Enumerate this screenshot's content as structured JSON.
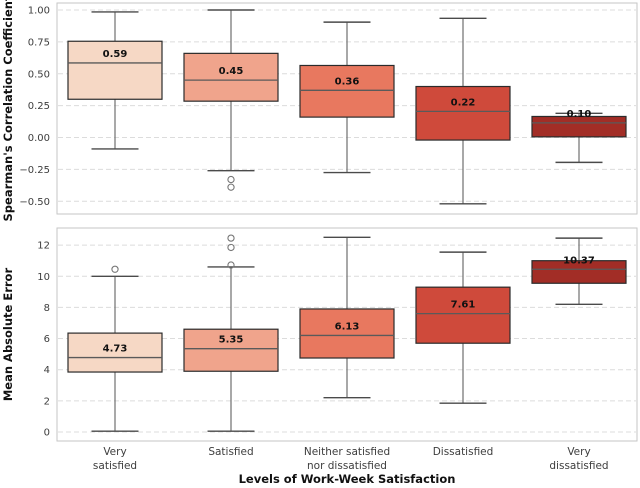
{
  "figure": {
    "xlabel": "Levels of Work-Week Satisfaction",
    "background": "#ffffff",
    "grid_color": "#dcdcdc",
    "border_color": "#c6c6c6",
    "box_edge_color": "#2b2b2b",
    "whisker_color": "#6f6f6f",
    "cap_color": "#4a4a4a",
    "median_color": "#5a5a5a",
    "flier_color": "#767676",
    "tick_color": "#3d3d3d",
    "label_color": "#111111",
    "box_colors": [
      "#f6d8c5",
      "#f0a48c",
      "#e8785f",
      "#cf4a3b",
      "#a22d26"
    ],
    "categories": [
      [
        "Very",
        "satisfied"
      ],
      [
        "Satisfied"
      ],
      [
        "Neither satisfied",
        "nor dissatisfied"
      ],
      [
        "Dissatisfied"
      ],
      [
        "Very",
        "dissatisfied"
      ]
    ]
  },
  "chart_data": [
    {
      "type": "box",
      "title": "",
      "ylabel": "Spearman's Correlation Coefficient",
      "ylim": [
        -0.6,
        1.055
      ],
      "yticks": [
        1.0,
        0.75,
        0.5,
        0.25,
        0.0,
        -0.25,
        -0.5
      ],
      "ytick_labels": [
        "1.00",
        "0.75",
        "0.50",
        "0.25",
        "0.00",
        "−0.25",
        "−0.50"
      ],
      "grid": true,
      "legend": false,
      "series": [
        {
          "category": "Very satisfied",
          "label": "0.59",
          "whislo": -0.09,
          "q1": 0.3,
          "med": 0.585,
          "q3": 0.755,
          "whishi": 0.985,
          "fliers": []
        },
        {
          "category": "Satisfied",
          "label": "0.45",
          "whislo": -0.26,
          "q1": 0.285,
          "med": 0.45,
          "q3": 0.66,
          "whishi": 1.0,
          "fliers": [
            -0.33,
            -0.39
          ]
        },
        {
          "category": "Neither satisfied nor dissatisfied",
          "label": "0.36",
          "whislo": -0.275,
          "q1": 0.16,
          "med": 0.37,
          "q3": 0.565,
          "whishi": 0.905,
          "fliers": []
        },
        {
          "category": "Dissatisfied",
          "label": "0.22",
          "whislo": -0.52,
          "q1": -0.02,
          "med": 0.205,
          "q3": 0.4,
          "whishi": 0.935,
          "fliers": []
        },
        {
          "category": "Very dissatisfied",
          "label": "0.10",
          "whislo": -0.195,
          "q1": 0.005,
          "med": 0.115,
          "q3": 0.165,
          "whishi": 0.19,
          "fliers": []
        }
      ]
    },
    {
      "type": "box",
      "title": "",
      "ylabel": "Mean Absolute Error",
      "ylim": [
        -0.58,
        13.1
      ],
      "yticks": [
        12,
        10,
        8,
        6,
        4,
        2,
        0
      ],
      "ytick_labels": [
        "12",
        "10",
        "8",
        "6",
        "4",
        "2",
        "0"
      ],
      "grid": true,
      "legend": false,
      "series": [
        {
          "category": "Very satisfied",
          "label": "4.73",
          "whislo": 0.05,
          "q1": 3.85,
          "med": 4.78,
          "q3": 6.35,
          "whishi": 10.0,
          "fliers": [
            10.45
          ]
        },
        {
          "category": "Satisfied",
          "label": "5.35",
          "whislo": 0.05,
          "q1": 3.9,
          "med": 5.35,
          "q3": 6.6,
          "whishi": 10.6,
          "fliers": [
            10.72,
            11.85,
            12.45
          ]
        },
        {
          "category": "Neither satisfied nor dissatisfied",
          "label": "6.13",
          "whislo": 2.2,
          "q1": 4.75,
          "med": 6.2,
          "q3": 7.9,
          "whishi": 12.5,
          "fliers": []
        },
        {
          "category": "Dissatisfied",
          "label": "7.61",
          "whislo": 1.85,
          "q1": 5.7,
          "med": 7.6,
          "q3": 9.3,
          "whishi": 11.55,
          "fliers": []
        },
        {
          "category": "Very dissatisfied",
          "label": "10.37",
          "whislo": 8.2,
          "q1": 9.55,
          "med": 10.45,
          "q3": 11.0,
          "whishi": 12.45,
          "fliers": []
        }
      ]
    }
  ]
}
